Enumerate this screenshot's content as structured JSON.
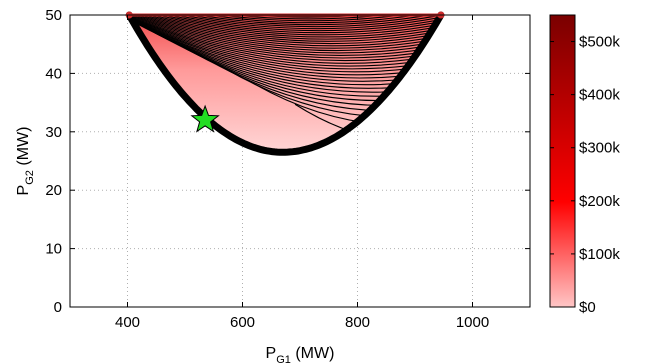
{
  "chart_data": {
    "type": "contour",
    "xlim": [
      300,
      1100
    ],
    "ylim": [
      0,
      50
    ],
    "x_ticks": [
      400,
      600,
      800,
      1000
    ],
    "y_ticks": [
      0,
      10,
      20,
      30,
      40,
      50
    ],
    "grid": true,
    "xlabel": {
      "main": "P",
      "sub": "G1",
      "unit": " (MW)"
    },
    "ylabel": {
      "main": "P",
      "sub": "G2",
      "unit": " (MW)"
    },
    "feasible_region": {
      "x_range": [
        403,
        945
      ],
      "top_y": 50,
      "minimum": {
        "x": 670,
        "y": 26.5
      }
    },
    "optimum_marker": {
      "x": 535,
      "y": 32,
      "color": "#22dd22",
      "shape": "star"
    },
    "colorbar": {
      "range": [
        0,
        550000
      ],
      "ticks": [
        {
          "value": 0,
          "label": "$0"
        },
        {
          "value": 100000,
          "label": "$100k"
        },
        {
          "value": 200000,
          "label": "$200k"
        },
        {
          "value": 300000,
          "label": "$300k"
        },
        {
          "value": 400000,
          "label": "$400k"
        },
        {
          "value": 500000,
          "label": "$500k"
        }
      ],
      "colors": [
        "#ffc6c6",
        "#ff0000",
        "#7a0000"
      ]
    },
    "contour_color": "#000000",
    "boundary_color": "#000000"
  }
}
